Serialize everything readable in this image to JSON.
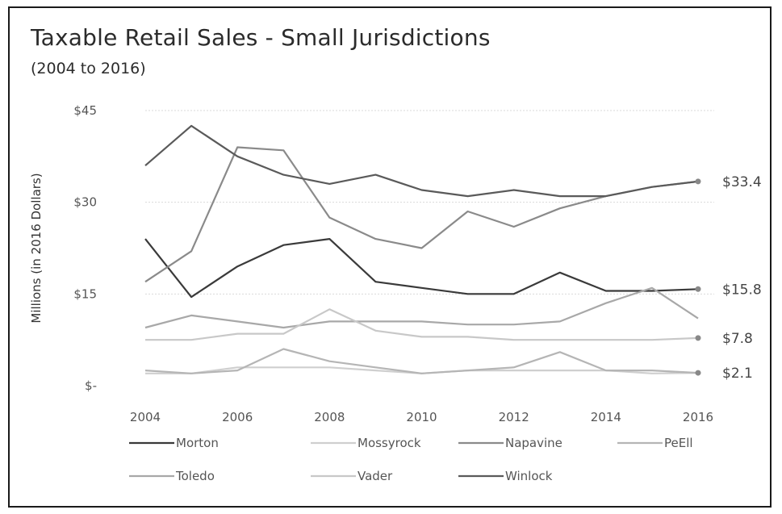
{
  "chart_data": {
    "type": "line",
    "title": "Taxable Retail Sales - Small Jurisdictions",
    "subtitle": "(2004 to 2016)",
    "xlabel": "",
    "ylabel": "Millions (in 2016 Dollars)",
    "ylim": [
      0,
      45
    ],
    "yticks": [
      {
        "value": 0,
        "label": "$-"
      },
      {
        "value": 15,
        "label": "$15"
      },
      {
        "value": 30,
        "label": "$30"
      },
      {
        "value": 45,
        "label": "$45"
      }
    ],
    "xticks": [
      "2004",
      "2006",
      "2008",
      "2010",
      "2012",
      "2014",
      "2016"
    ],
    "x": [
      2004,
      2005,
      2006,
      2007,
      2008,
      2009,
      2010,
      2011,
      2012,
      2013,
      2014,
      2015,
      2016
    ],
    "grid": true,
    "legend_position": "bottom",
    "colors": {
      "Morton": "#3a3a3a",
      "Mossyrock": "#cfcfcf",
      "Napavine": "#8a8a8a",
      "PeEll": "#b5b5b5",
      "Toledo": "#a8a8a8",
      "Vader": "#c8c8c8",
      "Winlock": "#5a5a5a"
    },
    "series": [
      {
        "name": "Morton",
        "values": [
          24,
          14.5,
          19.5,
          23,
          24,
          17,
          16,
          15,
          15,
          18.5,
          15.5,
          15.5,
          15.8
        ]
      },
      {
        "name": "Mossyrock",
        "values": [
          2,
          2,
          3,
          3,
          3,
          2.5,
          2,
          2.5,
          2.5,
          2.5,
          2.5,
          2,
          2.1
        ]
      },
      {
        "name": "Napavine",
        "values": [
          17,
          22,
          39,
          38.5,
          27.5,
          24,
          22.5,
          28.5,
          26,
          29,
          31,
          32.5,
          33.4
        ]
      },
      {
        "name": "PeEll",
        "values": [
          2.5,
          2,
          2.5,
          6,
          4,
          3,
          2,
          2.5,
          3,
          5.5,
          2.5,
          2.5,
          2.1
        ]
      },
      {
        "name": "Toledo",
        "values": [
          9.5,
          11.5,
          10.5,
          9.5,
          10.5,
          10.5,
          10.5,
          10,
          10,
          10.5,
          13.5,
          16,
          11
        ]
      },
      {
        "name": "Vader",
        "values": [
          7.5,
          7.5,
          8.5,
          8.5,
          12.5,
          9,
          8,
          8,
          7.5,
          7.5,
          7.5,
          7.5,
          7.8
        ]
      },
      {
        "name": "Winlock",
        "values": [
          36,
          42.5,
          37.5,
          34.5,
          33,
          34.5,
          32,
          31,
          32,
          31,
          31,
          32.5,
          33.4
        ]
      }
    ],
    "end_labels": [
      {
        "label": "$33.4",
        "value": 33.4
      },
      {
        "label": "$15.8",
        "value": 15.8
      },
      {
        "label": "$7.8",
        "value": 7.8
      },
      {
        "label": "$2.1",
        "value": 2.1
      }
    ]
  }
}
